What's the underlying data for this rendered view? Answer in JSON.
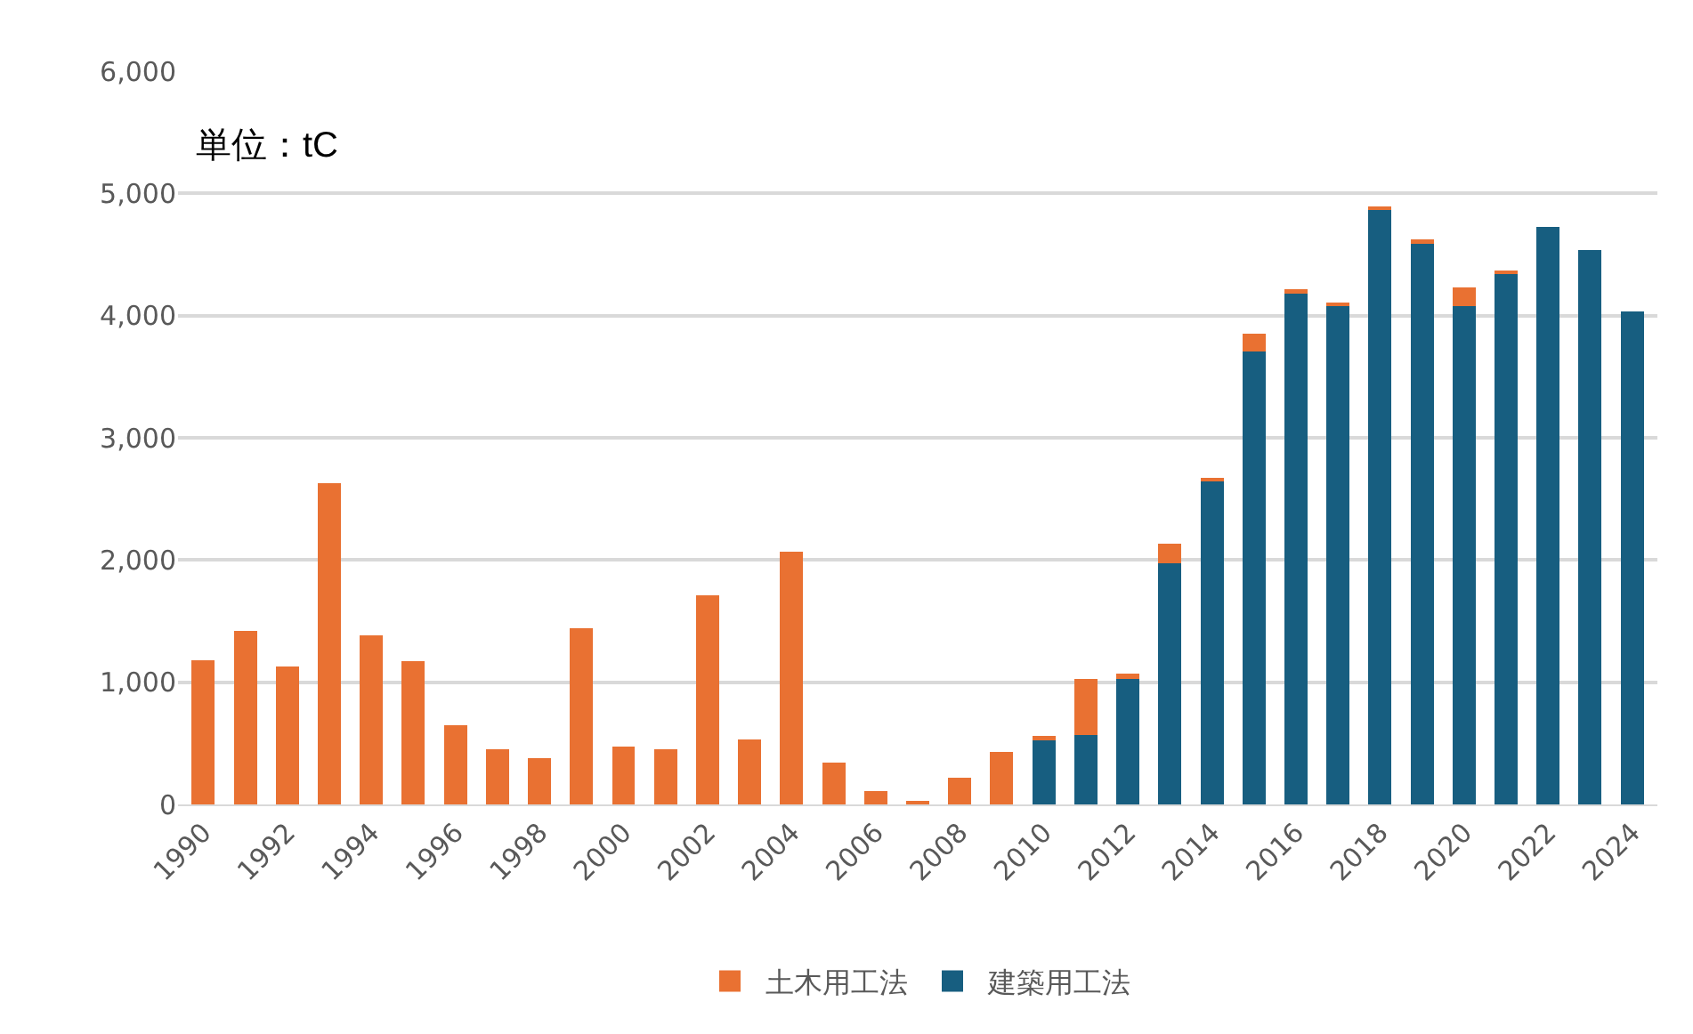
{
  "chart_data": {
    "type": "bar",
    "stacked": true,
    "categories": [
      "1990",
      null,
      "1992",
      null,
      "1994",
      null,
      "1996",
      null,
      "1998",
      null,
      "2000",
      null,
      "2002",
      null,
      "2004",
      null,
      "2006",
      null,
      "2008",
      null,
      "2010",
      null,
      "2012",
      null,
      "2014",
      null,
      "2016",
      null,
      "2018",
      null,
      "2020",
      null,
      "2022",
      null,
      "2024"
    ],
    "series": [
      {
        "name": "建築用工法",
        "color": "#175e80",
        "values": [
          0,
          0,
          0,
          0,
          0,
          0,
          0,
          0,
          0,
          0,
          0,
          0,
          0,
          0,
          0,
          0,
          0,
          0,
          0,
          0,
          535,
          570,
          1030,
          1975,
          2640,
          3710,
          4190,
          4080,
          4865,
          4600,
          4075,
          4350,
          4725,
          4535,
          4035
        ]
      },
      {
        "name": "土木用工法",
        "color": "#e97132",
        "values": [
          1180,
          1420,
          1130,
          2630,
          1380,
          1170,
          645,
          455,
          380,
          1440,
          475,
          455,
          1710,
          535,
          2070,
          340,
          110,
          30,
          220,
          430,
          25,
          460,
          40,
          155,
          30,
          140,
          25,
          20,
          25,
          25,
          155,
          20,
          0,
          0,
          0
        ]
      }
    ],
    "ylim": [
      0,
      6000
    ],
    "yticks": [
      0,
      {
        "value": 1000,
        "label": "1,000"
      },
      {
        "value": 2000,
        "label": "2,000"
      },
      {
        "value": 3000,
        "label": "3,000"
      },
      {
        "value": 4000,
        "label": "4,000"
      },
      {
        "value": 5000,
        "label": "5,000"
      },
      {
        "value": 6000,
        "label": "6,000"
      }
    ],
    "grid": "y",
    "legend": "bottom",
    "annotations": [
      "単位：tC"
    ]
  }
}
